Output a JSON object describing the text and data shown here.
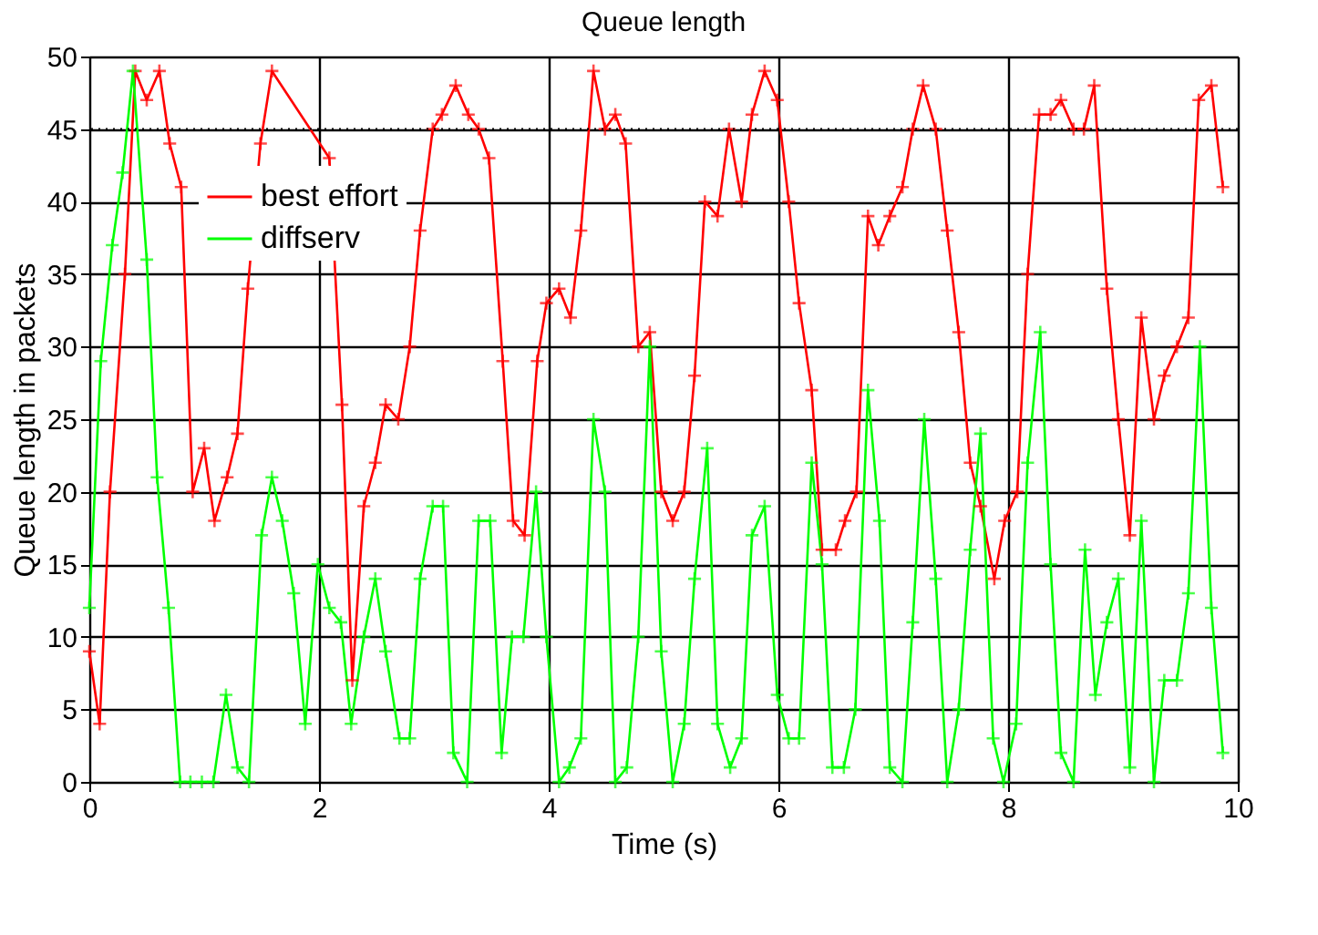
{
  "chart_data": {
    "type": "line",
    "title": "Queue length",
    "xlabel": "Time (s)",
    "ylabel": "Queue length in packets",
    "xlim": [
      0,
      10
    ],
    "xticks": [
      0,
      2,
      4,
      6,
      8,
      10
    ],
    "ylim": [
      0,
      50
    ],
    "yticks": [
      0,
      5,
      10,
      15,
      20,
      25,
      30,
      35,
      40,
      45,
      50
    ],
    "grid": true,
    "legend": "top left",
    "marker": "cross",
    "line_style": "solid",
    "ref_lines": [
      {
        "axis": "y",
        "value": 45,
        "line_style": "dotted",
        "color": "#000000"
      }
    ],
    "series": [
      {
        "name": "best effort",
        "color": "#ff0000",
        "x": [
          0,
          0.09,
          0.18,
          0.31,
          0.4,
          0.5,
          0.61,
          0.7,
          0.8,
          0.9,
          1.0,
          1.09,
          1.2,
          1.29,
          1.38,
          1.49,
          1.59,
          2.09,
          2.2,
          2.29,
          2.39,
          2.49,
          2.58,
          2.69,
          2.79,
          2.88,
          2.99,
          3.07,
          3.19,
          3.3,
          3.39,
          3.48,
          3.6,
          3.69,
          3.79,
          3.9,
          3.98,
          4.09,
          4.19,
          4.28,
          4.39,
          4.49,
          4.58,
          4.67,
          4.78,
          4.88,
          4.98,
          5.08,
          5.18,
          5.27,
          5.36,
          5.47,
          5.57,
          5.68,
          5.77,
          5.88,
          5.99,
          6.09,
          6.18,
          6.29,
          6.38,
          6.5,
          6.58,
          6.68,
          6.78,
          6.87,
          6.97,
          7.08,
          7.17,
          7.26,
          7.37,
          7.47,
          7.57,
          7.67,
          7.76,
          7.88,
          7.97,
          8.08,
          8.17,
          8.27,
          8.37,
          8.46,
          8.57,
          8.66,
          8.75,
          8.86,
          8.96,
          9.06,
          9.16,
          9.27,
          9.36,
          9.47,
          9.57,
          9.66,
          9.77,
          9.87
        ],
        "values": [
          9,
          4,
          20,
          35,
          49,
          47,
          49,
          44,
          41,
          20,
          23,
          18,
          21,
          24,
          34,
          44,
          49,
          43,
          26,
          7,
          19,
          22,
          26,
          25,
          30,
          38,
          45,
          46,
          48,
          46,
          45,
          43,
          29,
          18,
          17,
          29,
          33,
          34,
          32,
          38,
          49,
          45,
          46,
          44,
          30,
          31,
          20,
          18,
          20,
          28,
          40,
          39,
          45,
          40,
          46,
          49,
          47,
          40,
          33,
          27,
          16,
          16,
          18,
          20,
          39,
          37,
          39,
          41,
          45,
          48,
          45,
          38,
          31,
          22,
          19,
          14,
          18,
          20,
          35,
          46,
          46,
          47,
          45,
          45,
          48,
          34,
          25,
          17,
          32,
          25,
          28,
          30,
          32,
          47,
          48,
          41
        ]
      },
      {
        "name": "diffserv",
        "color": "#00ff00",
        "x": [
          0,
          0.1,
          0.2,
          0.29,
          0.38,
          0.5,
          0.59,
          0.69,
          0.79,
          0.88,
          0.98,
          1.08,
          1.19,
          1.29,
          1.39,
          1.5,
          1.59,
          1.68,
          1.78,
          1.88,
          1.99,
          2.09,
          2.19,
          2.28,
          2.39,
          2.49,
          2.58,
          2.7,
          2.79,
          2.88,
          2.99,
          3.08,
          3.17,
          3.29,
          3.39,
          3.49,
          3.59,
          3.68,
          3.78,
          3.89,
          3.98,
          4.09,
          4.18,
          4.28,
          4.39,
          4.49,
          4.58,
          4.68,
          4.78,
          4.88,
          4.98,
          5.08,
          5.18,
          5.27,
          5.38,
          5.47,
          5.58,
          5.68,
          5.77,
          5.88,
          5.99,
          6.09,
          6.18,
          6.29,
          6.38,
          6.47,
          6.57,
          6.67,
          6.78,
          6.88,
          6.97,
          7.08,
          7.17,
          7.27,
          7.37,
          7.47,
          7.57,
          7.67,
          7.76,
          7.87,
          7.96,
          8.07,
          8.17,
          8.28,
          8.37,
          8.46,
          8.57,
          8.67,
          8.76,
          8.86,
          8.96,
          9.06,
          9.16,
          9.27,
          9.36,
          9.47,
          9.57,
          9.67,
          9.77,
          9.87
        ],
        "values": [
          12,
          29,
          37,
          42,
          49,
          36,
          21,
          12,
          0,
          0,
          0,
          0,
          6,
          1,
          0,
          17,
          21,
          18,
          13,
          4,
          15,
          12,
          11,
          4,
          10,
          14,
          9,
          3,
          3,
          14,
          19,
          19,
          2,
          0,
          18,
          18,
          2,
          10,
          10,
          20,
          10,
          0,
          1,
          3,
          25,
          20,
          0,
          1,
          10,
          30,
          9,
          0,
          4,
          14,
          23,
          4,
          1,
          3,
          17,
          19,
          6,
          3,
          3,
          22,
          15,
          1,
          1,
          5,
          27,
          18,
          1,
          0,
          11,
          25,
          14,
          0,
          5,
          16,
          24,
          3,
          0,
          4,
          22,
          31,
          15,
          2,
          0,
          16,
          6,
          11,
          14,
          1,
          18,
          0,
          7,
          7,
          13,
          30,
          12,
          2
        ]
      }
    ]
  }
}
